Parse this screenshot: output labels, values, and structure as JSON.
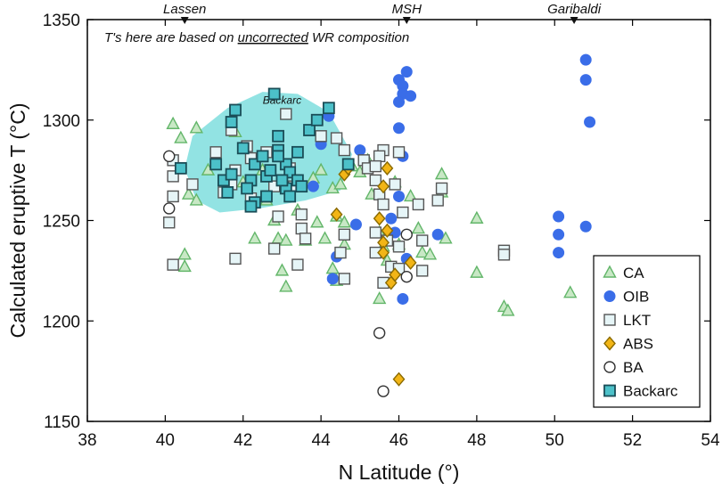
{
  "chart_data": {
    "type": "scatter",
    "xlabel": "N Latitude (°)",
    "ylabel": "Calculated eruptive T (°C)",
    "xlim": [
      38,
      54
    ],
    "ylim": [
      1150,
      1350
    ],
    "xticks": [
      38,
      40,
      42,
      44,
      46,
      48,
      50,
      52,
      54
    ],
    "yticks": [
      1150,
      1200,
      1250,
      1300,
      1350
    ],
    "note": {
      "prefix": "T's here are based on ",
      "underlined": "uncorrected",
      "suffix": " WR composition"
    },
    "volcanoes": [
      {
        "name": "Lassen",
        "x": 40.5
      },
      {
        "name": "MSH",
        "x": 46.2
      },
      {
        "name": "Garibaldi",
        "x": 50.5
      }
    ],
    "region": {
      "label": "Backarc",
      "label_at": [
        43.0,
        1308
      ],
      "polygon": [
        [
          40.7,
          1292
        ],
        [
          41.6,
          1306
        ],
        [
          42.5,
          1314
        ],
        [
          43.4,
          1313
        ],
        [
          44.2,
          1304
        ],
        [
          44.8,
          1283
        ],
        [
          44.5,
          1265
        ],
        [
          43.6,
          1260
        ],
        [
          42.4,
          1256
        ],
        [
          41.4,
          1254
        ],
        [
          40.8,
          1260
        ],
        [
          40.5,
          1276
        ]
      ]
    },
    "legend": {
      "position": "bottom-right"
    },
    "series": [
      {
        "name": "CA",
        "marker": "triangle",
        "color": "#63b66a",
        "fill": "#c8e8c5",
        "points": [
          [
            40.2,
            1298
          ],
          [
            40.4,
            1291
          ],
          [
            40.6,
            1263
          ],
          [
            40.5,
            1233
          ],
          [
            40.5,
            1227
          ],
          [
            40.8,
            1296
          ],
          [
            40.8,
            1260
          ],
          [
            41.1,
            1275
          ],
          [
            41.8,
            1294
          ],
          [
            42.0,
            1269
          ],
          [
            42.3,
            1241
          ],
          [
            42.5,
            1275
          ],
          [
            42.6,
            1260
          ],
          [
            42.8,
            1250
          ],
          [
            42.9,
            1241
          ],
          [
            43.0,
            1225
          ],
          [
            43.1,
            1240
          ],
          [
            43.1,
            1217
          ],
          [
            43.4,
            1255
          ],
          [
            43.6,
            1240
          ],
          [
            43.8,
            1271
          ],
          [
            43.9,
            1249
          ],
          [
            44.0,
            1275
          ],
          [
            44.1,
            1241
          ],
          [
            44.3,
            1266
          ],
          [
            44.4,
            1252
          ],
          [
            44.5,
            1268
          ],
          [
            44.6,
            1249
          ],
          [
            44.6,
            1238
          ],
          [
            44.4,
            1220
          ],
          [
            44.3,
            1226
          ],
          [
            44.8,
            1277
          ],
          [
            45.0,
            1274
          ],
          [
            45.2,
            1280
          ],
          [
            45.3,
            1263
          ],
          [
            45.5,
            1244
          ],
          [
            45.6,
            1237
          ],
          [
            45.7,
            1230
          ],
          [
            45.5,
            1211
          ],
          [
            45.9,
            1269
          ],
          [
            46.0,
            1238
          ],
          [
            46.3,
            1262
          ],
          [
            46.5,
            1246
          ],
          [
            46.6,
            1234
          ],
          [
            46.8,
            1233
          ],
          [
            47.1,
            1273
          ],
          [
            47.1,
            1264
          ],
          [
            47.2,
            1241
          ],
          [
            48.0,
            1251
          ],
          [
            48.0,
            1224
          ],
          [
            48.7,
            1207
          ],
          [
            48.8,
            1205
          ],
          [
            50.4,
            1214
          ]
        ]
      },
      {
        "name": "OIB",
        "marker": "circle",
        "color": "#3a6de8",
        "fill": "#3a6de8",
        "points": [
          [
            44.2,
            1302
          ],
          [
            44.0,
            1288
          ],
          [
            43.8,
            1267
          ],
          [
            44.4,
            1232
          ],
          [
            44.3,
            1221
          ],
          [
            45.0,
            1285
          ],
          [
            44.9,
            1248
          ],
          [
            45.8,
            1251
          ],
          [
            45.9,
            1244
          ],
          [
            46.0,
            1320
          ],
          [
            46.1,
            1317
          ],
          [
            46.1,
            1313
          ],
          [
            46.0,
            1309
          ],
          [
            46.3,
            1312
          ],
          [
            46.2,
            1324
          ],
          [
            46.0,
            1296
          ],
          [
            46.1,
            1282
          ],
          [
            46.0,
            1262
          ],
          [
            46.2,
            1231
          ],
          [
            46.1,
            1211
          ],
          [
            47.0,
            1243
          ],
          [
            50.1,
            1252
          ],
          [
            50.1,
            1243
          ],
          [
            50.1,
            1234
          ],
          [
            50.8,
            1330
          ],
          [
            50.8,
            1320
          ],
          [
            50.9,
            1299
          ],
          [
            50.8,
            1247
          ]
        ]
      },
      {
        "name": "LKT",
        "marker": "square",
        "color": "#555555",
        "fill": "#e6f5f7",
        "points": [
          [
            40.2,
            1280
          ],
          [
            40.2,
            1272
          ],
          [
            40.2,
            1262
          ],
          [
            40.1,
            1249
          ],
          [
            40.2,
            1228
          ],
          [
            40.7,
            1268
          ],
          [
            41.3,
            1284
          ],
          [
            41.5,
            1264
          ],
          [
            41.7,
            1295
          ],
          [
            41.7,
            1268
          ],
          [
            41.8,
            1275
          ],
          [
            42.1,
            1287
          ],
          [
            42.2,
            1281
          ],
          [
            42.2,
            1261
          ],
          [
            41.8,
            1231
          ],
          [
            42.6,
            1284
          ],
          [
            42.8,
            1267
          ],
          [
            42.9,
            1252
          ],
          [
            42.8,
            1236
          ],
          [
            43.1,
            1303
          ],
          [
            43.2,
            1276
          ],
          [
            43.3,
            1267
          ],
          [
            43.5,
            1253
          ],
          [
            43.5,
            1246
          ],
          [
            43.6,
            1241
          ],
          [
            43.4,
            1228
          ],
          [
            44.0,
            1292
          ],
          [
            44.4,
            1291
          ],
          [
            44.6,
            1285
          ],
          [
            44.6,
            1243
          ],
          [
            44.5,
            1234
          ],
          [
            44.6,
            1221
          ],
          [
            45.1,
            1280
          ],
          [
            45.2,
            1276
          ],
          [
            45.6,
            1285
          ],
          [
            45.5,
            1282
          ],
          [
            45.4,
            1277
          ],
          [
            45.4,
            1270
          ],
          [
            45.5,
            1263
          ],
          [
            45.6,
            1258
          ],
          [
            45.4,
            1244
          ],
          [
            45.7,
            1240
          ],
          [
            45.4,
            1234
          ],
          [
            45.8,
            1227
          ],
          [
            45.6,
            1219
          ],
          [
            46.0,
            1284
          ],
          [
            45.9,
            1268
          ],
          [
            46.1,
            1254
          ],
          [
            46.0,
            1237
          ],
          [
            46.0,
            1226
          ],
          [
            46.5,
            1258
          ],
          [
            46.6,
            1240
          ],
          [
            46.6,
            1225
          ],
          [
            47.1,
            1266
          ],
          [
            47.0,
            1260
          ],
          [
            48.7,
            1235
          ],
          [
            48.7,
            1233
          ]
        ]
      },
      {
        "name": "ABS",
        "marker": "diamond",
        "color": "#8a6a00",
        "fill": "#f2b516",
        "points": [
          [
            44.4,
            1253
          ],
          [
            44.6,
            1273
          ],
          [
            44.7,
            1276
          ],
          [
            45.7,
            1276
          ],
          [
            45.6,
            1267
          ],
          [
            45.5,
            1251
          ],
          [
            45.7,
            1245
          ],
          [
            45.6,
            1239
          ],
          [
            45.6,
            1234
          ],
          [
            45.8,
            1219
          ],
          [
            45.9,
            1223
          ],
          [
            46.3,
            1229
          ],
          [
            46.0,
            1171
          ]
        ]
      },
      {
        "name": "BA",
        "marker": "circle-open",
        "color": "#333333",
        "fill": "#ffffff",
        "points": [
          [
            40.1,
            1282
          ],
          [
            40.1,
            1256
          ],
          [
            46.2,
            1243
          ],
          [
            46.2,
            1222
          ],
          [
            45.5,
            1194
          ],
          [
            45.6,
            1165
          ]
        ]
      },
      {
        "name": "Backarc",
        "marker": "square-filled",
        "color": "#1a4d57",
        "fill": "#4cc1c9",
        "points": [
          [
            40.4,
            1276
          ],
          [
            41.3,
            1278
          ],
          [
            41.5,
            1270
          ],
          [
            41.6,
            1264
          ],
          [
            41.8,
            1305
          ],
          [
            41.7,
            1299
          ],
          [
            42.0,
            1286
          ],
          [
            42.3,
            1278
          ],
          [
            42.2,
            1270
          ],
          [
            42.5,
            1282
          ],
          [
            42.6,
            1272
          ],
          [
            42.6,
            1262
          ],
          [
            42.3,
            1259
          ],
          [
            42.2,
            1257
          ],
          [
            42.7,
            1275
          ],
          [
            42.9,
            1292
          ],
          [
            42.9,
            1285
          ],
          [
            43.1,
            1278
          ],
          [
            43.2,
            1274
          ],
          [
            43.1,
            1266
          ],
          [
            43.2,
            1262
          ],
          [
            42.8,
            1313
          ],
          [
            43.0,
            1270
          ],
          [
            43.4,
            1270
          ],
          [
            43.5,
            1267
          ],
          [
            43.7,
            1295
          ],
          [
            43.9,
            1300
          ],
          [
            44.2,
            1306
          ],
          [
            44.7,
            1278
          ],
          [
            41.7,
            1273
          ],
          [
            42.1,
            1266
          ],
          [
            42.9,
            1282
          ],
          [
            43.4,
            1284
          ]
        ]
      }
    ]
  }
}
